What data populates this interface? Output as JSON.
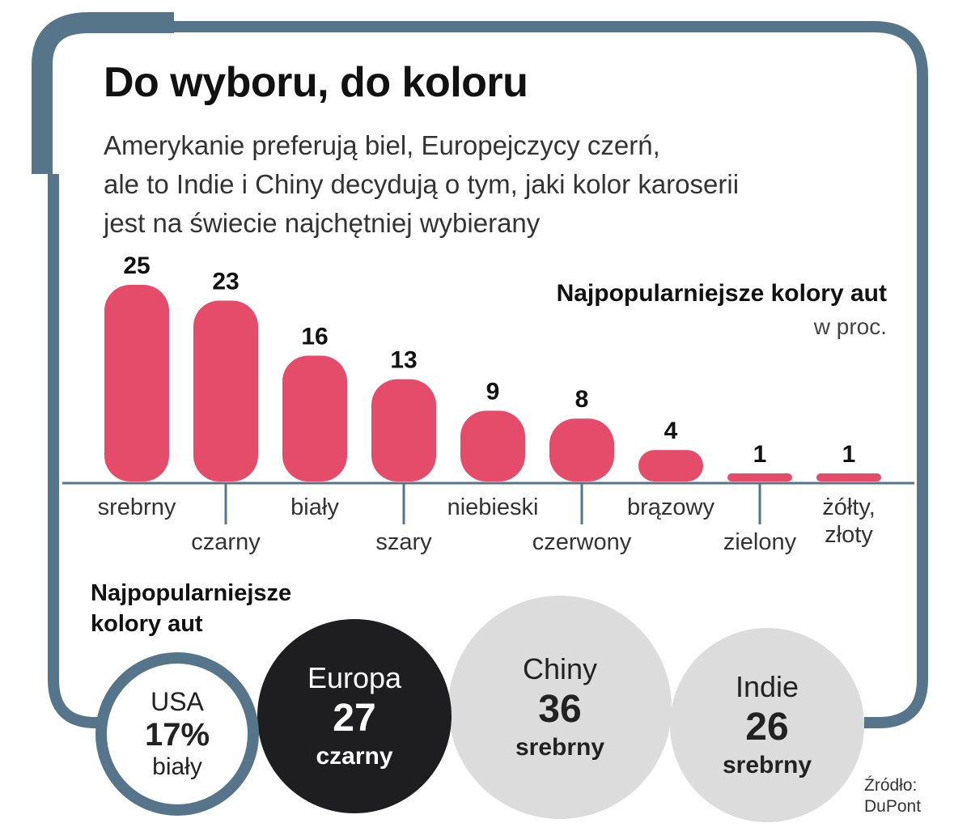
{
  "title": "Do wyboru, do koloru",
  "subtitle": [
    "Amerykanie preferują biel, Europejczycy czerń,",
    "ale to Indie i Chiny decydują o tym, jaki kolor karoserii",
    "jest na świecie najchętniej wybierany"
  ],
  "colors": {
    "frame": "#56758a",
    "bar": "#e44c6a",
    "europe": "#1e1e20",
    "grey_circle": "#dcdcdc"
  },
  "chart_data": {
    "type": "bar",
    "title": "Najpopularniejsze kolory aut",
    "unit": "w proc.",
    "categories": [
      "srebrny",
      "czarny",
      "biały",
      "szary",
      "niebieski",
      "czerwony",
      "brązowy",
      "zielony",
      "żółty, złoty"
    ],
    "values": [
      25,
      23,
      16,
      13,
      9,
      8,
      4,
      1,
      1
    ],
    "ylim": [
      0,
      25
    ],
    "grid": false
  },
  "regions": {
    "title_lines": [
      "Najpopularniejsze",
      "kolory aut"
    ],
    "items": [
      {
        "id": "usa",
        "name": "USA",
        "value": "17%",
        "color": "biały"
      },
      {
        "id": "eu",
        "name": "Europa",
        "value": "27",
        "color": "czarny"
      },
      {
        "id": "cn",
        "name": "Chiny",
        "value": "36",
        "color": "srebrny"
      },
      {
        "id": "in",
        "name": "Indie",
        "value": "26",
        "color": "srebrny"
      }
    ]
  },
  "source": [
    "Źródło:",
    "DuPont"
  ]
}
